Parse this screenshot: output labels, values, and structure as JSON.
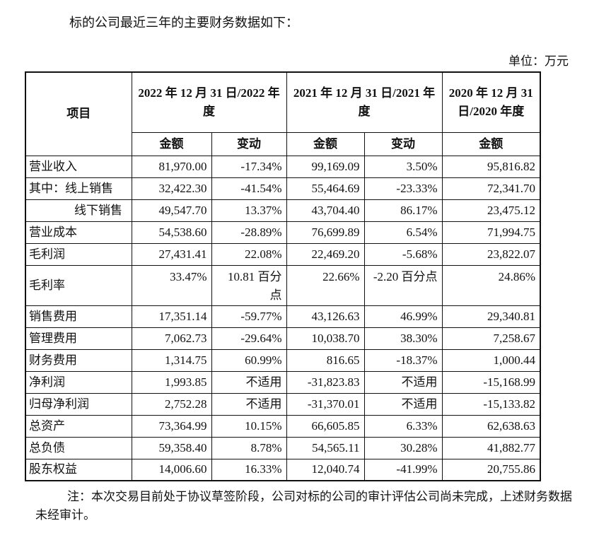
{
  "intro": "标的公司最近三年的主要财务数据如下：",
  "unit": "单位：万元",
  "header": {
    "item": "项目",
    "period_2022": "2022 年 12 月 31 日/2022 年度",
    "period_2021": "2021 年 12 月 31 日/2021 年度",
    "period_2020": "2020 年 12 月 31 日/2020 年度",
    "amount": "金额",
    "change": "变动"
  },
  "rows": [
    {
      "label": "营业收入",
      "v2022": "81,970.00",
      "c2022": "-17.34%",
      "v2021": "99,169.09",
      "c2021": "3.50%",
      "v2020": "95,816.82"
    },
    {
      "label": "其中：线上销售",
      "v2022": "32,422.30",
      "c2022": "-41.54%",
      "v2021": "55,464.69",
      "c2021": "-23.33%",
      "v2020": "72,341.70"
    },
    {
      "label": "线下销售",
      "indent": true,
      "v2022": "49,547.70",
      "c2022": "13.37%",
      "v2021": "43,704.40",
      "c2021": "86.17%",
      "v2020": "23,475.12"
    },
    {
      "label": "营业成本",
      "v2022": "54,538.60",
      "c2022": "-28.89%",
      "v2021": "76,699.89",
      "c2021": "6.54%",
      "v2020": "71,994.75"
    },
    {
      "label": "毛利润",
      "v2022": "27,431.41",
      "c2022": "22.08%",
      "v2021": "22,469.20",
      "c2021": "-5.68%",
      "v2020": "23,822.07"
    },
    {
      "label": "毛利率",
      "tall": true,
      "v2022": "33.47%",
      "c2022": "10.81 百分点",
      "v2021": "22.66%",
      "c2021": "-2.20 百分点",
      "v2020": "24.86%"
    },
    {
      "label": "销售费用",
      "v2022": "17,351.14",
      "c2022": "-59.77%",
      "v2021": "43,126.63",
      "c2021": "46.99%",
      "v2020": "29,340.81"
    },
    {
      "label": "管理费用",
      "v2022": "7,062.73",
      "c2022": "-29.64%",
      "v2021": "10,038.70",
      "c2021": "38.30%",
      "v2020": "7,258.67"
    },
    {
      "label": "财务费用",
      "v2022": "1,314.75",
      "c2022": "60.99%",
      "v2021": "816.65",
      "c2021": "-18.37%",
      "v2020": "1,000.44"
    },
    {
      "label": "净利润",
      "v2022": "1,993.85",
      "c2022": "不适用",
      "v2021": "-31,823.83",
      "c2021": "不适用",
      "v2020": "-15,168.99"
    },
    {
      "label": "归母净利润",
      "v2022": "2,752.28",
      "c2022": "不适用",
      "v2021": "-31,370.01",
      "c2021": "不适用",
      "v2020": "-15,133.82"
    },
    {
      "label": "总资产",
      "v2022": "73,364.99",
      "c2022": "10.15%",
      "v2021": "66,605.85",
      "c2021": "6.33%",
      "v2020": "62,638.63"
    },
    {
      "label": "总负债",
      "v2022": "59,358.40",
      "c2022": "8.78%",
      "v2021": "54,565.11",
      "c2021": "30.28%",
      "v2020": "41,882.77"
    },
    {
      "label": "股东权益",
      "v2022": "14,006.60",
      "c2022": "16.33%",
      "v2021": "12,040.74",
      "c2021": "-41.99%",
      "v2020": "20,755.86"
    }
  ],
  "note": "注：本次交易目前处于协议草签阶段，公司对标的公司的审计评估公司尚未完成，上述财务数据未经审计。"
}
